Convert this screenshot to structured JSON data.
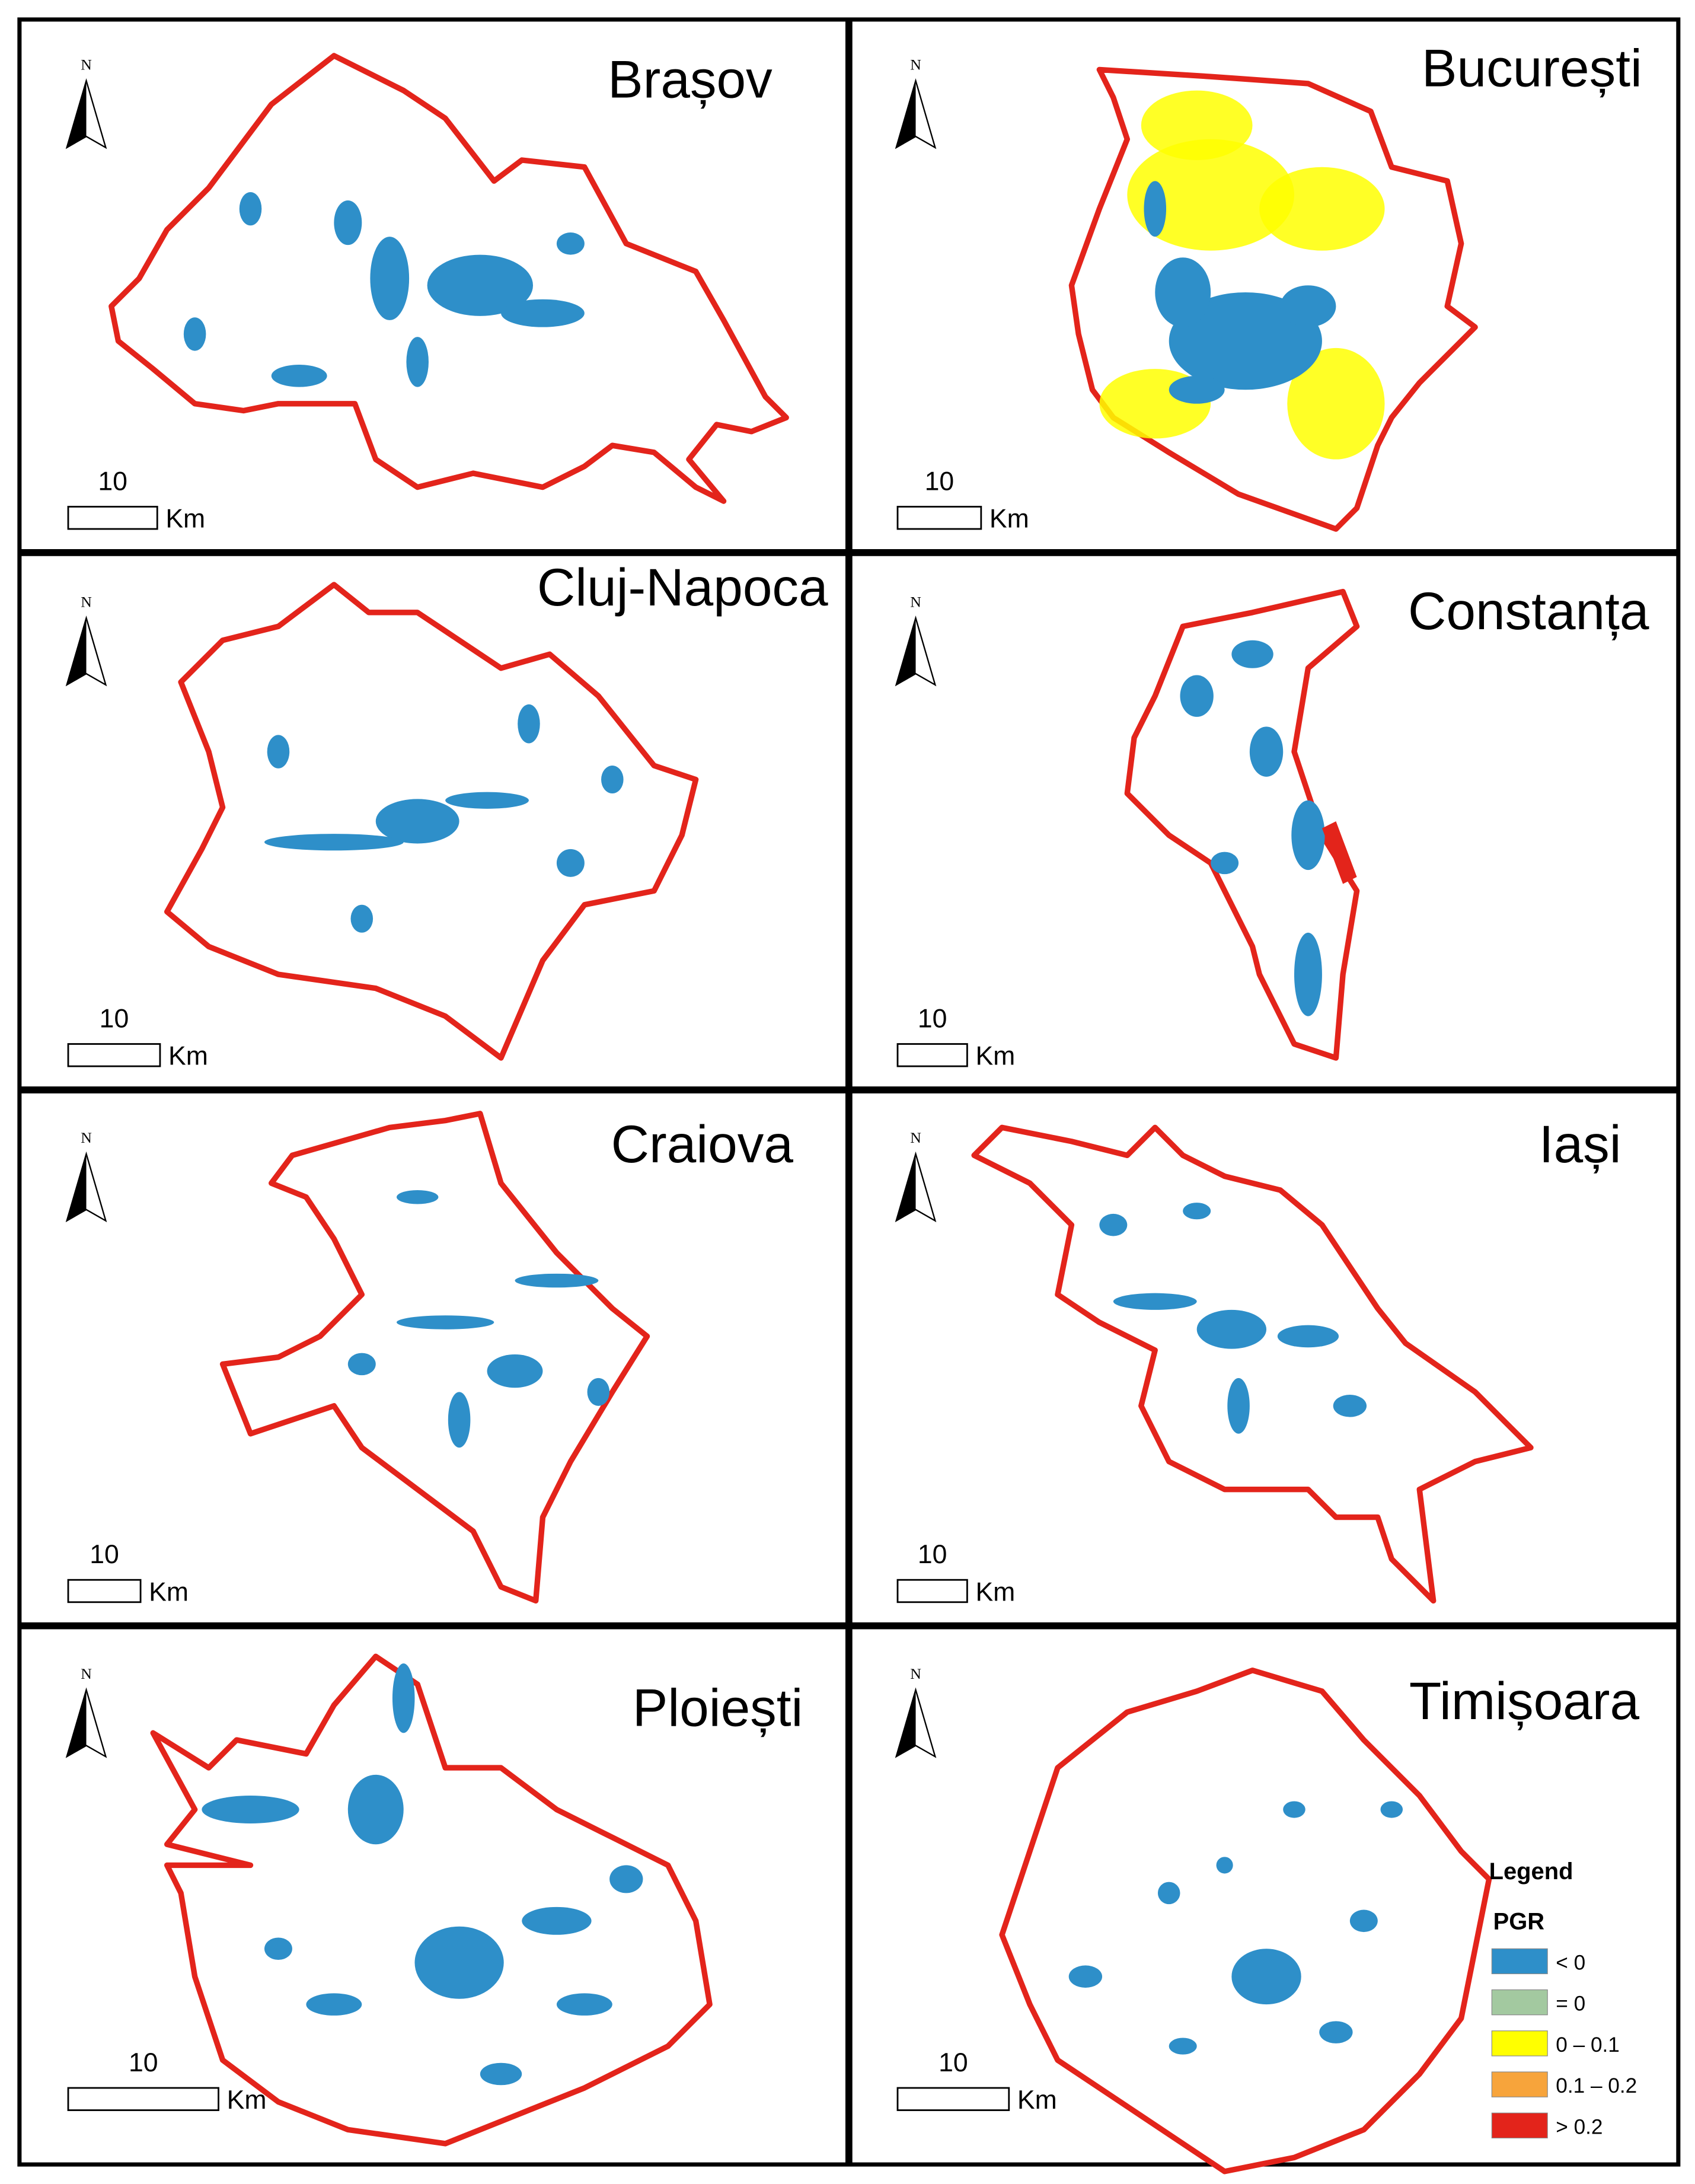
{
  "panels": [
    {
      "title": "Brașov",
      "north": "N",
      "scale_value": "10",
      "scale_unit": "Km"
    },
    {
      "title": "București",
      "north": "N",
      "scale_value": "10",
      "scale_unit": "Km"
    },
    {
      "title": "Cluj-Napoca",
      "north": "N",
      "scale_value": "10",
      "scale_unit": "Km"
    },
    {
      "title": "Constanța",
      "north": "N",
      "scale_value": "10",
      "scale_unit": "Km"
    },
    {
      "title": "Craiova",
      "north": "N",
      "scale_value": "10",
      "scale_unit": "Km"
    },
    {
      "title": "Iași",
      "north": "N",
      "scale_value": "10",
      "scale_unit": "Km"
    },
    {
      "title": "Ploiești",
      "north": "N",
      "scale_value": "10",
      "scale_unit": "Km"
    },
    {
      "title": "Timișoara",
      "north": "N",
      "scale_value": "10",
      "scale_unit": "Km"
    }
  ],
  "legend": {
    "title": "Legend",
    "subtitle": "PGR",
    "items": [
      {
        "label": "< 0",
        "color": "#2e8fc9"
      },
      {
        "label": "= 0",
        "color": "#a3c9a0"
      },
      {
        "label": "0 – 0.1",
        "color": "#ffff00"
      },
      {
        "label": "0.1 – 0.2",
        "color": "#f7a43b"
      },
      {
        "label": "> 0.2",
        "color": "#e3241b"
      }
    ]
  }
}
